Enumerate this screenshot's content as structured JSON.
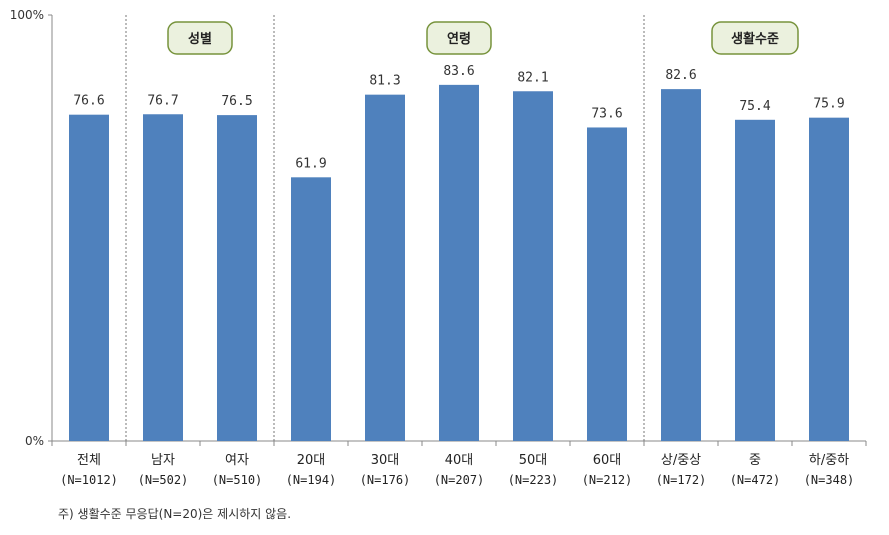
{
  "chart_data": {
    "type": "bar",
    "ylim": [
      0,
      100
    ],
    "y_ticks": [
      "0%",
      "100%"
    ],
    "bar_color": "#4F81BD",
    "group_label_fill": "#EBF1DE",
    "group_label_border": "#77933C",
    "categories": [
      {
        "label": "전체",
        "n": "(N=1012)"
      },
      {
        "label": "남자",
        "n": "(N=502)"
      },
      {
        "label": "여자",
        "n": "(N=510)"
      },
      {
        "label": "20대",
        "n": "(N=194)"
      },
      {
        "label": "30대",
        "n": "(N=176)"
      },
      {
        "label": "40대",
        "n": "(N=207)"
      },
      {
        "label": "50대",
        "n": "(N=223)"
      },
      {
        "label": "60대",
        "n": "(N=212)"
      },
      {
        "label": "상/중상",
        "n": "(N=172)"
      },
      {
        "label": "중",
        "n": "(N=472)"
      },
      {
        "label": "하/중하",
        "n": "(N=348)"
      }
    ],
    "values": [
      76.6,
      76.7,
      76.5,
      61.9,
      81.3,
      83.6,
      82.1,
      73.6,
      82.6,
      75.4,
      75.9
    ],
    "value_labels": [
      "76.6",
      "76.7",
      "76.5",
      "61.9",
      "81.3",
      "83.6",
      "82.1",
      "73.6",
      "82.6",
      "75.4",
      "75.9"
    ],
    "groups": [
      {
        "label": "성별",
        "start": 1,
        "end": 2
      },
      {
        "label": "연령",
        "start": 3,
        "end": 7
      },
      {
        "label": "생활수준",
        "start": 8,
        "end": 10
      }
    ]
  },
  "note": "주) 생활수준 무응답(N=20)은 제시하지 않음."
}
